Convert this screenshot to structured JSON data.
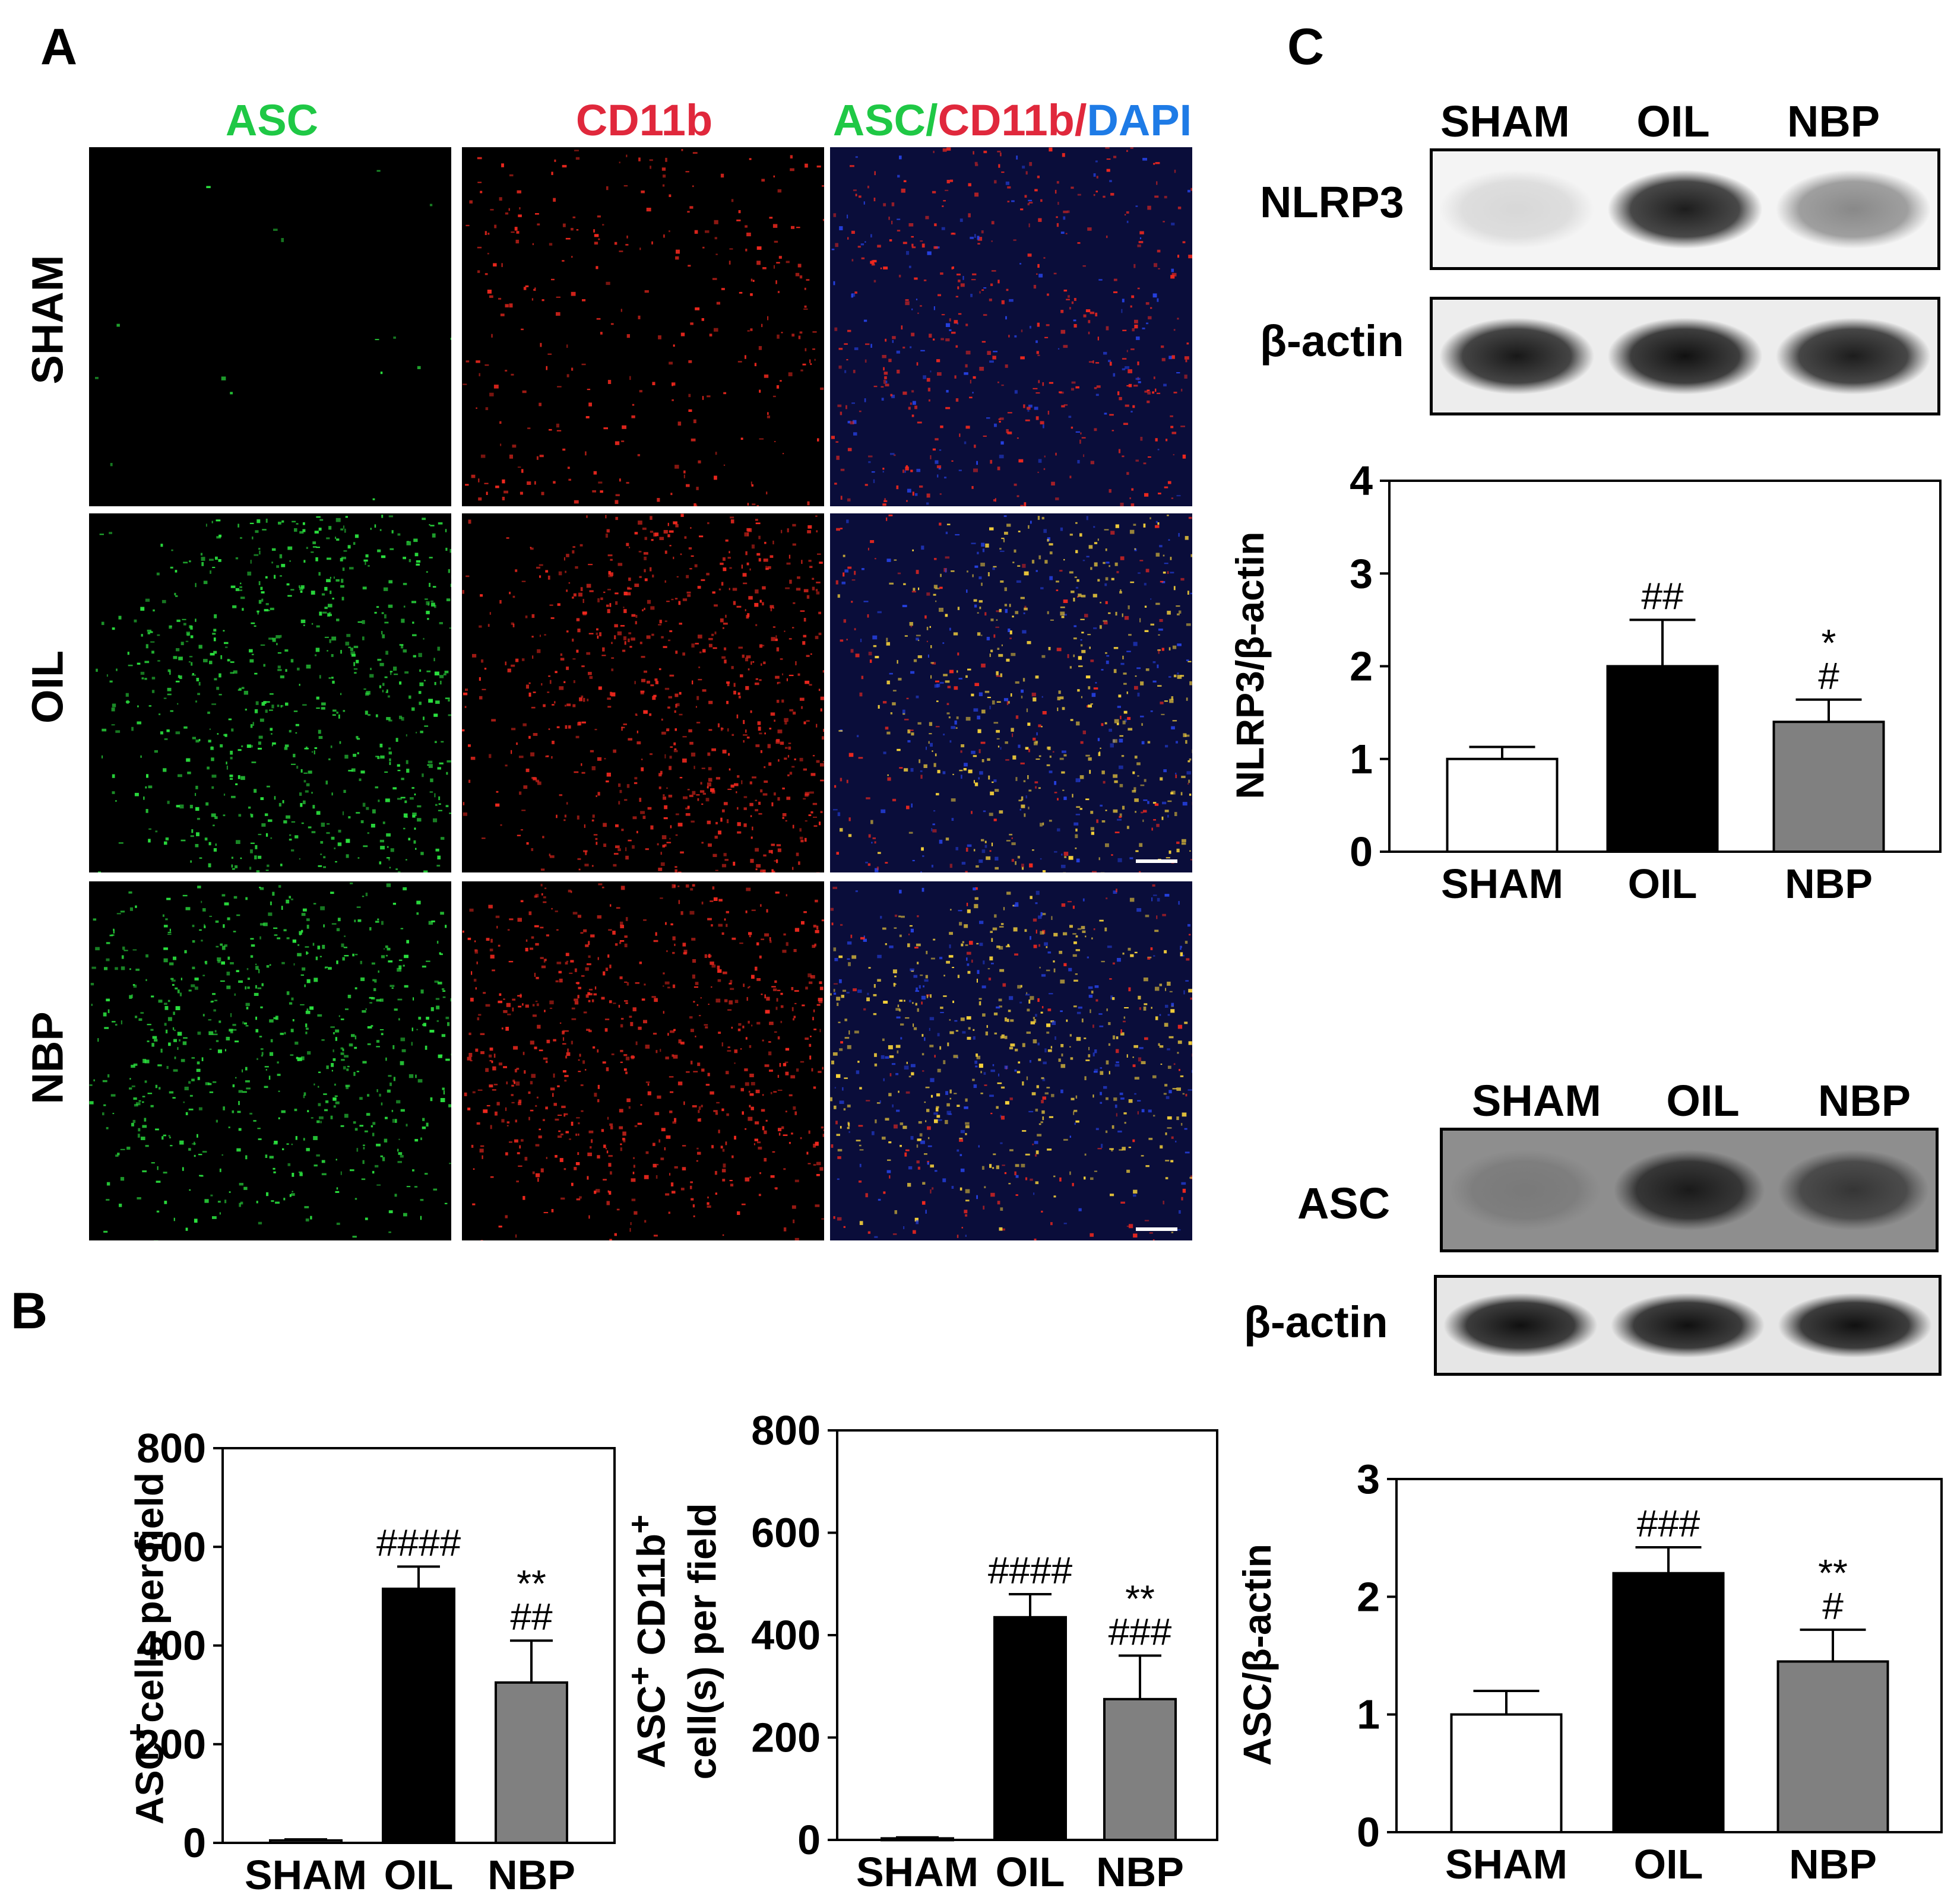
{
  "panel_letters": {
    "a": "A",
    "b": "B",
    "c": "C"
  },
  "panel_a": {
    "columns": [
      {
        "parts": [
          {
            "text": "ASC",
            "color": "#1fc845"
          }
        ]
      },
      {
        "parts": [
          {
            "text": "CD11b",
            "color": "#e0283c"
          }
        ]
      },
      {
        "parts": [
          {
            "text": "ASC/",
            "color": "#1fc845"
          },
          {
            "text": "CD11b/",
            "color": "#e0283c"
          },
          {
            "text": "DAPI",
            "color": "#1e7be6"
          }
        ]
      }
    ],
    "rows": [
      "SHAM",
      "OIL",
      "NBP"
    ],
    "channel_colors": {
      "green": "#2be33f",
      "red": "#f0281e",
      "blue": "#2540e0",
      "yellow": "#f7d23a"
    }
  },
  "panel_c_blots": {
    "nlrp3": {
      "lanes": [
        "SHAM",
        "OIL",
        "NBP"
      ],
      "target_label": "NLRP3",
      "loading_label": "β-actin",
      "target_intensity": [
        0.12,
        0.9,
        0.45
      ],
      "loading_intensity": [
        0.92,
        0.95,
        0.9
      ]
    },
    "asc": {
      "lanes": [
        "SHAM",
        "OIL",
        "NBP"
      ],
      "target_label": "ASC",
      "loading_label": "β-actin",
      "target_intensity": [
        0.15,
        0.85,
        0.65
      ],
      "loading_intensity": [
        0.95,
        0.95,
        0.95
      ]
    }
  },
  "chart_data": [
    {
      "id": "b1",
      "type": "bar",
      "ylabel_main": "ASC",
      "ylabel_sup": "+",
      "ylabel_rest": "cells per field",
      "categories": [
        "SHAM",
        "OIL",
        "NBP"
      ],
      "values": [
        5,
        515,
        325
      ],
      "errors": [
        2,
        45,
        85
      ],
      "ylim": [
        0,
        800
      ],
      "yticks": [
        "0",
        "200",
        "400",
        "600",
        "800"
      ],
      "colors": [
        "#ffffff",
        "#000000",
        "#808080"
      ],
      "annotations": [
        {
          "index": 1,
          "lines": [
            "####"
          ]
        },
        {
          "index": 2,
          "lines": [
            "**",
            "##"
          ]
        }
      ]
    },
    {
      "id": "b2",
      "type": "bar",
      "ylabel_line1_main": "ASC",
      "ylabel_line1_sup1": "+",
      "ylabel_line1_mid": "CD11b",
      "ylabel_line1_sup2": "+",
      "ylabel_line2": "cell(s) per field",
      "categories": [
        "SHAM",
        "OIL",
        "NBP"
      ],
      "values": [
        3,
        435,
        275
      ],
      "errors": [
        2,
        45,
        85
      ],
      "ylim": [
        0,
        800
      ],
      "yticks": [
        "0",
        "200",
        "400",
        "600",
        "800"
      ],
      "colors": [
        "#ffffff",
        "#000000",
        "#808080"
      ],
      "annotations": [
        {
          "index": 1,
          "lines": [
            "####"
          ]
        },
        {
          "index": 2,
          "lines": [
            "**",
            "###"
          ]
        }
      ]
    },
    {
      "id": "c1",
      "type": "bar",
      "ylabel": "NLRP3/β-actin",
      "categories": [
        "SHAM",
        "OIL",
        "NBP"
      ],
      "values": [
        1.0,
        2.0,
        1.4
      ],
      "errors": [
        0.13,
        0.5,
        0.24
      ],
      "ylim": [
        0,
        4
      ],
      "yticks": [
        "0",
        "1",
        "2",
        "3",
        "4"
      ],
      "colors": [
        "#ffffff",
        "#000000",
        "#808080"
      ],
      "annotations": [
        {
          "index": 1,
          "lines": [
            "##"
          ]
        },
        {
          "index": 2,
          "lines": [
            "*",
            "#"
          ]
        }
      ]
    },
    {
      "id": "c2",
      "type": "bar",
      "ylabel": "ASC/β-actin",
      "categories": [
        "SHAM",
        "OIL",
        "NBP"
      ],
      "values": [
        1.0,
        2.2,
        1.45
      ],
      "errors": [
        0.2,
        0.22,
        0.27
      ],
      "ylim": [
        0,
        3
      ],
      "yticks": [
        "0",
        "1",
        "2",
        "3"
      ],
      "colors": [
        "#ffffff",
        "#000000",
        "#808080"
      ],
      "annotations": [
        {
          "index": 1,
          "lines": [
            "###"
          ]
        },
        {
          "index": 2,
          "lines": [
            "**",
            "#"
          ]
        }
      ]
    }
  ]
}
